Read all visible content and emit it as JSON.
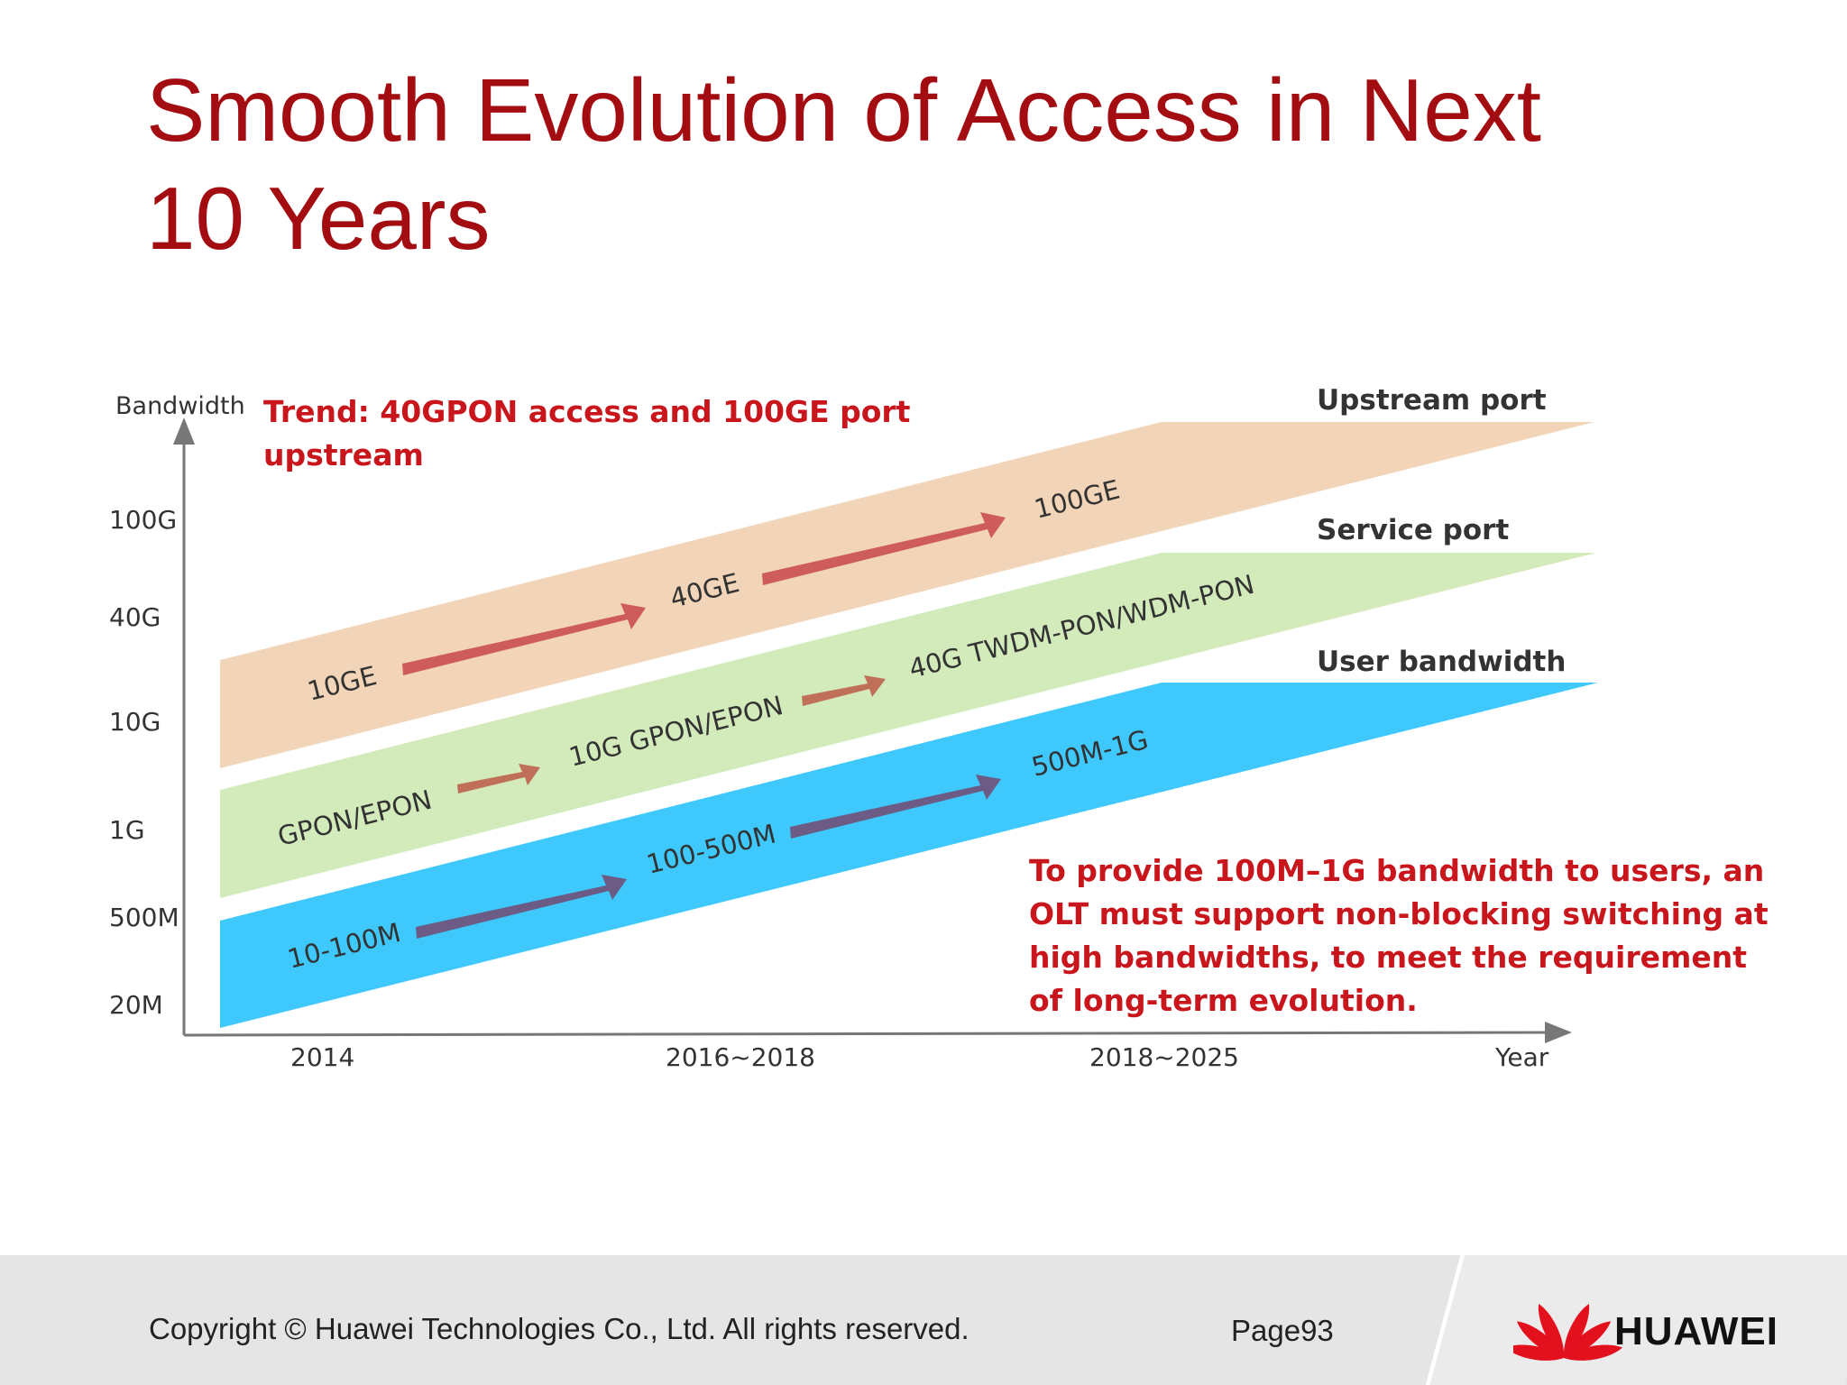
{
  "title_lines": [
    "Smooth Evolution of Access in Next",
    "10 Years"
  ],
  "diagram": {
    "y_axis_label": "Bandwidth",
    "x_axis_label": "Year",
    "y_ticks": [
      "100G",
      "40G",
      "10G",
      "1G",
      "500M",
      "20M"
    ],
    "x_ticks": [
      "2014",
      "2016~2018",
      "2018~2025"
    ],
    "trend_lines": [
      "Trend: 40GPON access and 100GE port",
      "upstream"
    ],
    "bands": [
      {
        "name": "Upstream port",
        "color": "#f2d5b8",
        "arrow_color": "#cd5c5a",
        "stages": [
          "10GE",
          "40GE",
          "100GE"
        ]
      },
      {
        "name": "Service port",
        "color": "#d3ebbb",
        "arrow_color": "#c07058",
        "stages": [
          "GPON/EPON",
          "10G GPON/EPON",
          "40G TWDM-PON/WDM-PON"
        ]
      },
      {
        "name": "User bandwidth",
        "color": "#3ec8fb",
        "arrow_color": "#6b5b85",
        "stages": [
          "10-100M",
          "100-500M",
          "500M-1G"
        ]
      }
    ],
    "note_lines": [
      "To provide 100M–1G bandwidth to users, an",
      "OLT must support non-blocking switching at",
      "high bandwidths, to meet the requirement",
      "of long-term  evolution."
    ],
    "accent_color": "#c8161c"
  },
  "footer": {
    "copyright": "Copyright © Huawei Technologies Co., Ltd. All rights reserved.",
    "page": "Page93",
    "brand": "HUAWEI",
    "logo_icon": "huawei-petal-logo",
    "logo_color": "#e3101e"
  }
}
